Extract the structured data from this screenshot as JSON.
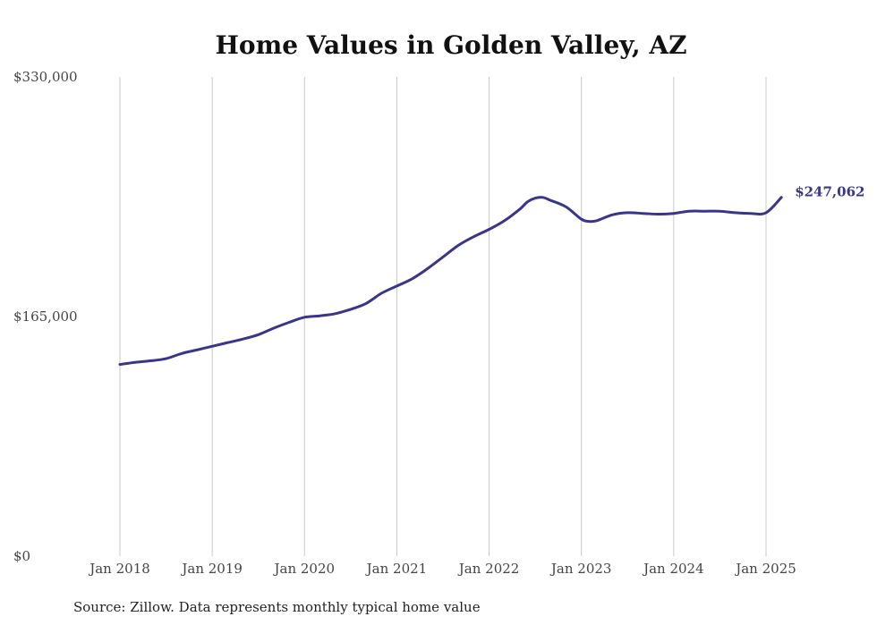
{
  "chart_data": {
    "type": "line",
    "title": "Home Values in Golden Valley, AZ",
    "xlabel": "",
    "ylabel": "",
    "ylim": [
      0,
      330000
    ],
    "y_ticks": [
      {
        "value": 0,
        "label": "$0"
      },
      {
        "value": 165000,
        "label": "$165,000"
      },
      {
        "value": 330000,
        "label": "$330,000"
      }
    ],
    "x_ticks": [
      {
        "value": "2018-01",
        "label": "Jan 2018"
      },
      {
        "value": "2019-01",
        "label": "Jan 2019"
      },
      {
        "value": "2020-01",
        "label": "Jan 2020"
      },
      {
        "value": "2021-01",
        "label": "Jan 2021"
      },
      {
        "value": "2022-01",
        "label": "Jan 2022"
      },
      {
        "value": "2023-01",
        "label": "Jan 2023"
      },
      {
        "value": "2024-01",
        "label": "Jan 2024"
      },
      {
        "value": "2025-01",
        "label": "Jan 2025"
      }
    ],
    "grid": "vertical",
    "line_color": "#3b3587",
    "series": [
      {
        "x": [
          "2018-01",
          "2018-03",
          "2018-05",
          "2018-07",
          "2018-09",
          "2018-11",
          "2019-01",
          "2019-03",
          "2019-05",
          "2019-07",
          "2019-09",
          "2019-11",
          "2020-01",
          "2020-03",
          "2020-05",
          "2020-07",
          "2020-09",
          "2020-11",
          "2021-01",
          "2021-03",
          "2021-05",
          "2021-07",
          "2021-09",
          "2021-11",
          "2022-01",
          "2022-03",
          "2022-05",
          "2022-06",
          "2022-07",
          "2022-08",
          "2022-09",
          "2022-11",
          "2023-01",
          "2023-02",
          "2023-03",
          "2023-05",
          "2023-07",
          "2023-09",
          "2023-11",
          "2024-01",
          "2024-03",
          "2024-05",
          "2024-07",
          "2024-09",
          "2024-11",
          "2025-01",
          "2025-03"
        ],
        "values": [
          132000,
          133500,
          134500,
          136000,
          139500,
          142000,
          144500,
          147000,
          149500,
          152500,
          157000,
          161000,
          164500,
          165500,
          167000,
          170000,
          174000,
          181000,
          186000,
          191000,
          198000,
          206000,
          214000,
          220000,
          225000,
          231000,
          239000,
          244000,
          246500,
          247000,
          245000,
          240500,
          232000,
          230500,
          231000,
          235000,
          236500,
          236000,
          235500,
          236000,
          237500,
          237500,
          237500,
          236500,
          236000,
          236500,
          247062
        ]
      }
    ],
    "end_label": "$247,062",
    "source": "Source: Zillow. Data represents monthly typical home value"
  }
}
